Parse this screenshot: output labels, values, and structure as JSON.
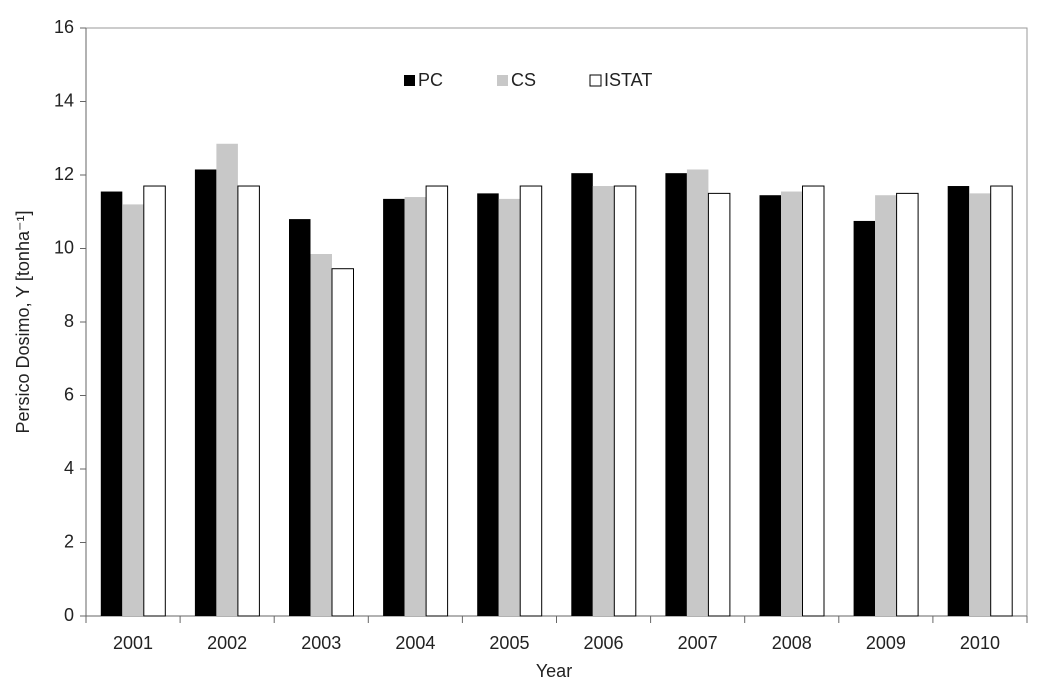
{
  "chart_data": {
    "type": "bar",
    "x_label": "Year",
    "y_label": "Persico Dosimo, Y [tonha⁻¹]",
    "categories": [
      "2001",
      "2002",
      "2003",
      "2004",
      "2005",
      "2006",
      "2007",
      "2008",
      "2009",
      "2010"
    ],
    "series": [
      {
        "name": "PC",
        "color": "#000000",
        "values": [
          11.55,
          12.15,
          10.8,
          11.35,
          11.5,
          12.05,
          12.05,
          11.45,
          10.75,
          11.7
        ]
      },
      {
        "name": "CS",
        "color": "#c8c8c8",
        "values": [
          11.2,
          12.85,
          9.85,
          11.4,
          11.35,
          11.7,
          12.15,
          11.55,
          11.45,
          11.5
        ]
      },
      {
        "name": "ISTAT",
        "color": "#ffffff",
        "values": [
          11.7,
          11.7,
          9.45,
          11.7,
          11.7,
          11.7,
          11.5,
          11.7,
          11.5,
          11.7
        ]
      }
    ],
    "ylim": [
      0,
      16
    ],
    "yticks": [
      0,
      2,
      4,
      6,
      8,
      10,
      12,
      14,
      16
    ],
    "grid": false,
    "legend": "top"
  }
}
